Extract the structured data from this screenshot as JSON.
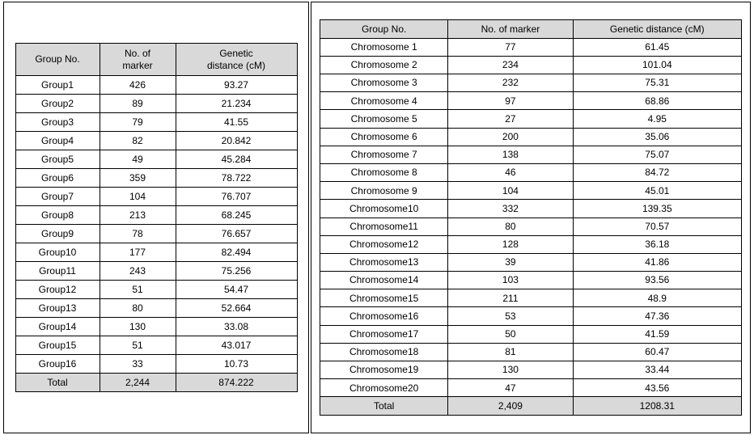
{
  "left_table": {
    "columns": [
      "Group No.",
      "No. of\nmarker",
      "Genetic\ndistance (cM)"
    ],
    "header_bg": "#d9d9d9",
    "total_bg": "#d9d9d9",
    "border_color": "#000000",
    "font_size_pt": 9,
    "rows": [
      {
        "group": "Group1",
        "markers": "426",
        "dist": "93.27"
      },
      {
        "group": "Group2",
        "markers": "89",
        "dist": "21.234"
      },
      {
        "group": "Group3",
        "markers": "79",
        "dist": "41.55"
      },
      {
        "group": "Group4",
        "markers": "82",
        "dist": "20.842"
      },
      {
        "group": "Group5",
        "markers": "49",
        "dist": "45.284"
      },
      {
        "group": "Group6",
        "markers": "359",
        "dist": "78.722"
      },
      {
        "group": "Group7",
        "markers": "104",
        "dist": "76.707"
      },
      {
        "group": "Group8",
        "markers": "213",
        "dist": "68.245"
      },
      {
        "group": "Group9",
        "markers": "78",
        "dist": "76.657"
      },
      {
        "group": "Group10",
        "markers": "177",
        "dist": "82.494"
      },
      {
        "group": "Group11",
        "markers": "243",
        "dist": "75.256"
      },
      {
        "group": "Group12",
        "markers": "51",
        "dist": "54.47"
      },
      {
        "group": "Group13",
        "markers": "80",
        "dist": "52.664"
      },
      {
        "group": "Group14",
        "markers": "130",
        "dist": "33.08"
      },
      {
        "group": "Group15",
        "markers": "51",
        "dist": "43.017"
      },
      {
        "group": "Group16",
        "markers": "33",
        "dist": "10.73"
      }
    ],
    "total": {
      "label": "Total",
      "markers": "2,244",
      "dist": "874.222"
    }
  },
  "right_table": {
    "columns": [
      "Group No.",
      "No. of marker",
      "Genetic distance (cM)"
    ],
    "header_bg": "#d9d9d9",
    "total_bg": "#d9d9d9",
    "border_color": "#000000",
    "font_size_pt": 9,
    "rows": [
      {
        "group": "Chromosome 1",
        "markers": "77",
        "dist": "61.45"
      },
      {
        "group": "Chromosome 2",
        "markers": "234",
        "dist": "101.04"
      },
      {
        "group": "Chromosome 3",
        "markers": "232",
        "dist": "75.31"
      },
      {
        "group": "Chromosome 4",
        "markers": "97",
        "dist": "68.86"
      },
      {
        "group": "Chromosome 5",
        "markers": "27",
        "dist": "4.95"
      },
      {
        "group": "Chromosome 6",
        "markers": "200",
        "dist": "35.06"
      },
      {
        "group": "Chromosome 7",
        "markers": "138",
        "dist": "75.07"
      },
      {
        "group": "Chromosome 8",
        "markers": "46",
        "dist": "84.72"
      },
      {
        "group": "Chromosome 9",
        "markers": "104",
        "dist": "45.01"
      },
      {
        "group": "Chromosome10",
        "markers": "332",
        "dist": "139.35"
      },
      {
        "group": "Chromosome11",
        "markers": "80",
        "dist": "70.57"
      },
      {
        "group": "Chromosome12",
        "markers": "128",
        "dist": "36.18"
      },
      {
        "group": "Chromosome13",
        "markers": "39",
        "dist": "41.86"
      },
      {
        "group": "Chromosome14",
        "markers": "103",
        "dist": "93.56"
      },
      {
        "group": "Chromosome15",
        "markers": "211",
        "dist": "48.9"
      },
      {
        "group": "Chromosome16",
        "markers": "53",
        "dist": "47.36"
      },
      {
        "group": "Chromosome17",
        "markers": "50",
        "dist": "41.59"
      },
      {
        "group": "Chromosome18",
        "markers": "81",
        "dist": "60.47"
      },
      {
        "group": "Chromosome19",
        "markers": "130",
        "dist": "33.44"
      },
      {
        "group": "Chromosome20",
        "markers": "47",
        "dist": "43.56"
      }
    ],
    "total": {
      "label": "Total",
      "markers": "2,409",
      "dist": "1208.31"
    }
  }
}
